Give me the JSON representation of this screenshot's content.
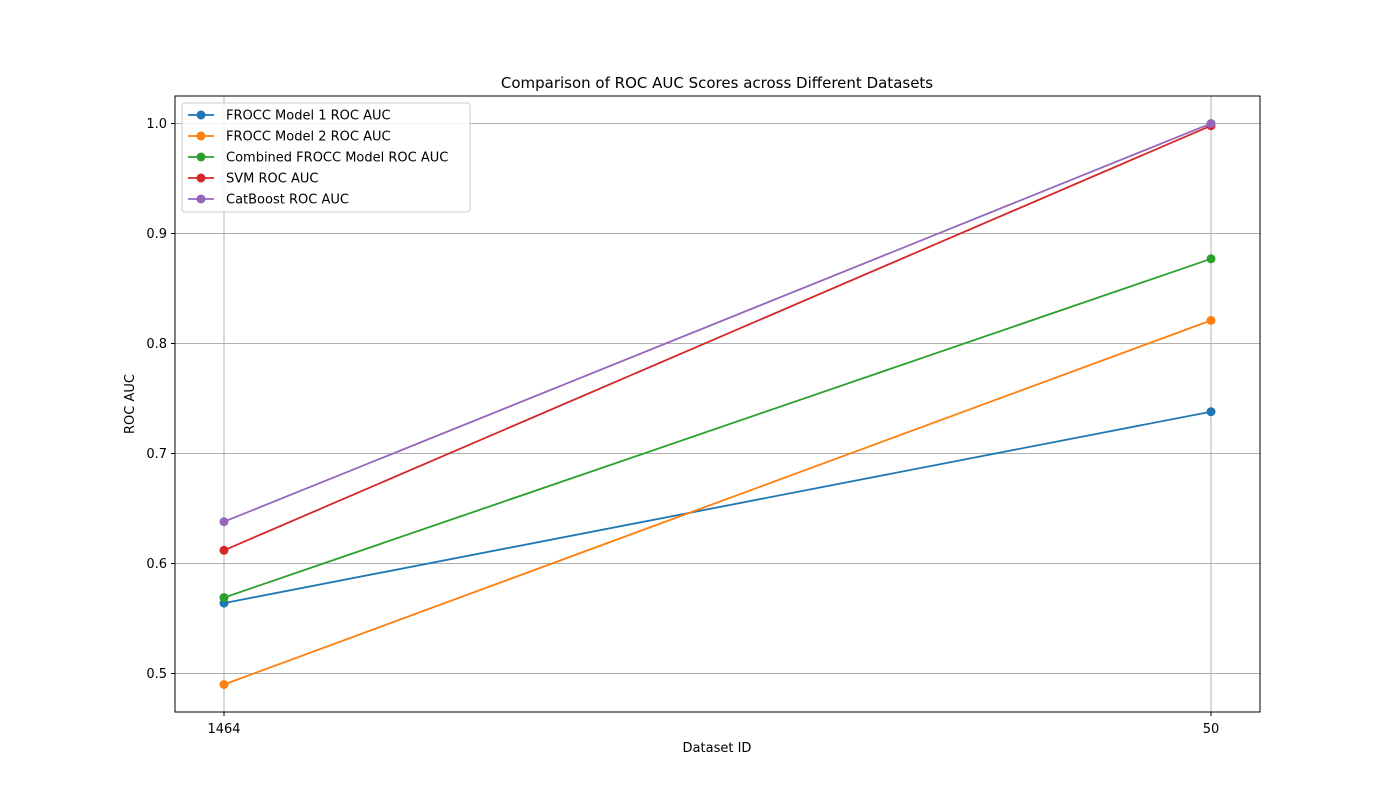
{
  "chart_data": {
    "type": "line",
    "title": "Comparison of ROC AUC Scores across Different Datasets",
    "xlabel": "Dataset ID",
    "ylabel": "ROC AUC",
    "categories": [
      "1464",
      "50"
    ],
    "ylim": [
      0.465,
      1.025
    ],
    "yticks": [
      "0.5",
      "0.6",
      "0.7",
      "0.8",
      "0.9",
      "1.0"
    ],
    "grid": true,
    "legend_position": "upper left",
    "series": [
      {
        "name": "FROCC Model 1 ROC AUC",
        "color": "#1f77b4",
        "values": [
          0.564,
          0.738
        ]
      },
      {
        "name": "FROCC Model 2 ROC AUC",
        "color": "#ff7f0e",
        "values": [
          0.49,
          0.821
        ]
      },
      {
        "name": "Combined FROCC Model ROC AUC",
        "color": "#2ca02c",
        "values": [
          0.569,
          0.877
        ]
      },
      {
        "name": "SVM ROC AUC",
        "color": "#d62728",
        "values": [
          0.612,
          0.998
        ]
      },
      {
        "name": "CatBoost ROC AUC",
        "color": "#9467bd",
        "values": [
          0.638,
          1.0
        ]
      }
    ]
  }
}
